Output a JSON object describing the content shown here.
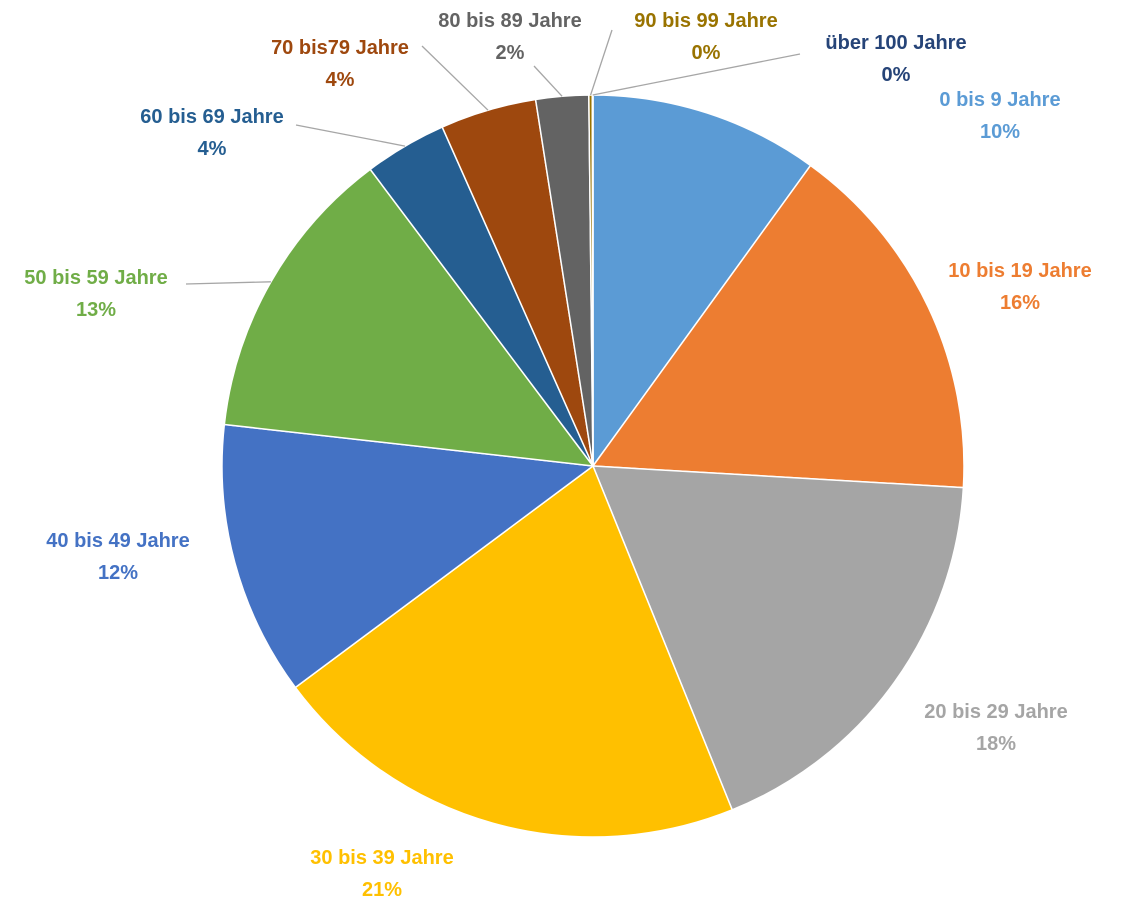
{
  "chart_data": {
    "type": "pie",
    "title": "",
    "start_angle_deg": 0,
    "direction": "clockwise",
    "slices": [
      {
        "label": "0 bis 9 Jahre",
        "percent_label": "10%",
        "value": 10,
        "color": "#5B9BD5"
      },
      {
        "label": "10 bis 19 Jahre",
        "percent_label": "16%",
        "value": 16,
        "color": "#ED7D31"
      },
      {
        "label": "20 bis 29 Jahre",
        "percent_label": "18%",
        "value": 18,
        "color": "#A5A5A5"
      },
      {
        "label": "30 bis 39 Jahre",
        "percent_label": "21%",
        "value": 21,
        "color": "#FFC000"
      },
      {
        "label": "40 bis 49 Jahre",
        "percent_label": "12%",
        "value": 12,
        "color": "#4472C4"
      },
      {
        "label": "50 bis 59 Jahre",
        "percent_label": "13%",
        "value": 13,
        "color": "#70AD47"
      },
      {
        "label": "60 bis 69 Jahre",
        "percent_label": "4%",
        "value": 3.6,
        "color": "#255E91"
      },
      {
        "label": "70 bis79 Jahre",
        "percent_label": "4%",
        "value": 4.2,
        "color": "#9E480E"
      },
      {
        "label": "80 bis 89 Jahre",
        "percent_label": "2%",
        "value": 2.3,
        "color": "#636363"
      },
      {
        "label": "90 bis 99 Jahre",
        "percent_label": "0%",
        "value": 0.15,
        "color": "#997300"
      },
      {
        "label": "über 100 Jahre",
        "percent_label": "0%",
        "value": 0.03,
        "color": "#264478"
      }
    ]
  }
}
